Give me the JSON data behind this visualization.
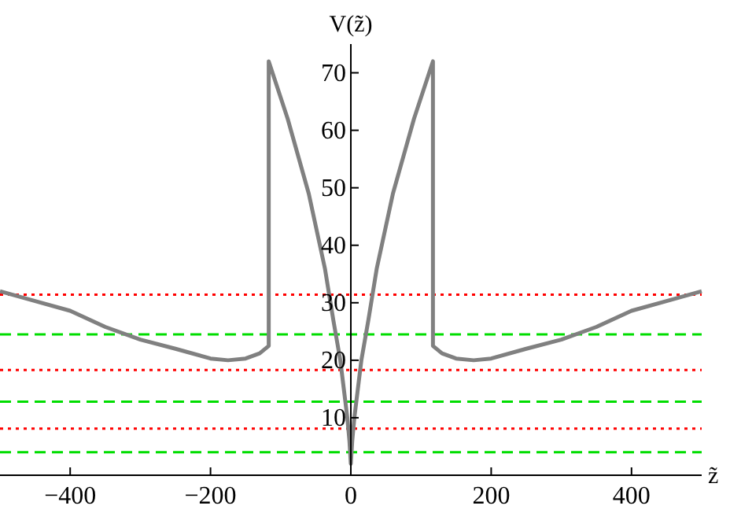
{
  "chart_data": {
    "type": "line",
    "xlabel": "z̃",
    "ylabel": "V(z̃)",
    "xlim": [
      -500,
      500
    ],
    "ylim": [
      0,
      75
    ],
    "xticks": [
      -400,
      -200,
      0,
      200,
      400
    ],
    "yticks": [
      10,
      20,
      30,
      40,
      50,
      60,
      70
    ],
    "series": [
      {
        "color": "#808080",
        "x": [
          -500,
          -450,
          -400,
          -350,
          -300,
          -250,
          -200,
          -175,
          -150,
          -130,
          -117,
          -117,
          -90,
          -60,
          -37,
          -25,
          -15,
          -10,
          -5,
          -2,
          0,
          2,
          5,
          10,
          15,
          25,
          37,
          60,
          90,
          117,
          117,
          130,
          150,
          175,
          200,
          250,
          300,
          350,
          400,
          450,
          500
        ],
        "values": [
          32,
          30.3,
          28.6,
          25.8,
          23.6,
          22,
          20.3,
          20,
          20.3,
          21.2,
          22.5,
          72,
          62,
          49,
          36,
          27,
          20,
          15,
          10,
          6,
          2,
          6,
          10,
          15,
          20,
          27,
          36,
          49,
          62,
          72,
          22.5,
          21.2,
          20.3,
          20,
          20.3,
          22,
          23.6,
          25.8,
          28.6,
          30.3,
          32
        ]
      }
    ],
    "ref_lines": [
      {
        "axis": "y",
        "value": 31.4,
        "color": "#ff0000",
        "line_style": "dotted"
      },
      {
        "axis": "y",
        "value": 24.5,
        "color": "#00dd00",
        "line_style": "dashed"
      },
      {
        "axis": "y",
        "value": 18.3,
        "color": "#ff0000",
        "line_style": "dotted"
      },
      {
        "axis": "y",
        "value": 12.8,
        "color": "#00dd00",
        "line_style": "dashed"
      },
      {
        "axis": "y",
        "value": 8.1,
        "color": "#ff0000",
        "line_style": "dotted"
      },
      {
        "axis": "y",
        "value": 4,
        "color": "#00dd00",
        "line_style": "dashed"
      }
    ]
  }
}
